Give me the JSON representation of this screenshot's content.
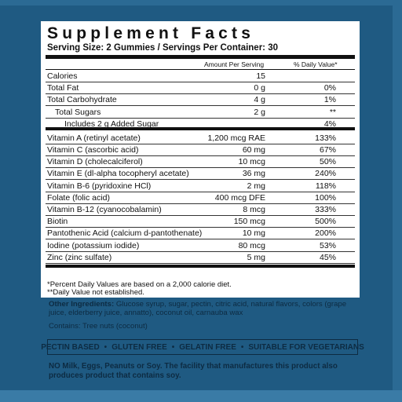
{
  "title": "Supplement Facts",
  "serving": "Serving Size: 2 Gummies / Servings Per Container: 30",
  "columns": [
    "Amount Per Serving",
    "% Daily Value*"
  ],
  "rows": [
    [
      "Calories",
      "15",
      ""
    ],
    [
      "Total Fat",
      "0 g",
      "0%"
    ],
    [
      "Total Carbohydrate",
      "4 g",
      "1%"
    ],
    [
      "Total Sugars",
      "2 g",
      "**"
    ],
    [
      "Includes 2 g Added Sugar",
      "",
      "4%"
    ],
    [
      "Vitamin A (retinyl acetate)",
      "1,200 mcg RAE",
      "133%"
    ],
    [
      "Vitamin C (ascorbic acid)",
      "60 mg",
      "67%"
    ],
    [
      "Vitamin D (cholecalciferol)",
      "10 mcg",
      "50%"
    ],
    [
      "Vitamin E (dl-alpha tocopheryl acetate)",
      "36 mg",
      "240%"
    ],
    [
      "Vitamin B-6 (pyridoxine HCl)",
      "2 mg",
      "118%"
    ],
    [
      "Folate (folic acid)",
      "400 mcg DFE",
      "100%"
    ],
    [
      "Vitamin B-12 (cyanocobalamin)",
      "8 mcg",
      "333%"
    ],
    [
      "Biotin",
      "150 mcg",
      "500%"
    ],
    [
      "Pantothenic Acid (calcium d-pantothenate)",
      "10 mg",
      "200%"
    ],
    [
      "Iodine (potassium iodide)",
      "80 mcg",
      "53%"
    ],
    [
      "Zinc (zinc sulfate)",
      "5 mg",
      "45%"
    ]
  ],
  "footnotes": [
    "*Percent Daily Values are based on a 2,000 calorie diet.",
    "**Daily Value not established."
  ],
  "other_ingredients": {
    "label": "Other Ingredients:",
    "text": "Glucose syrup, sugar, pectin, citric acid, natural flavors, colors (grape juice, elderberry juice, annatto), coconut oil, carnauba wax"
  },
  "contains": "Contains: Tree nuts (coconut)",
  "claims": [
    "PECTIN BASED",
    "GLUTEN FREE",
    "GELATIN FREE",
    "SUITABLE FOR VEGETARIANS"
  ],
  "warning": "NO Milk, Eggs, Peanuts or Soy. The facility that manufactures this product also produces product that contains soy."
}
